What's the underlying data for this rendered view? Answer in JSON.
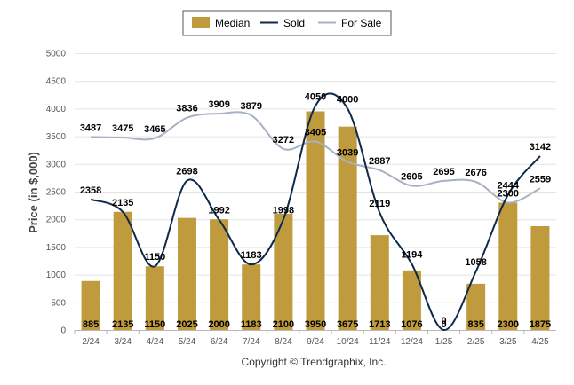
{
  "chart_data": {
    "type": "bar",
    "categories": [
      "2/24",
      "3/24",
      "4/24",
      "5/24",
      "6/24",
      "7/24",
      "8/24",
      "9/24",
      "10/24",
      "11/24",
      "12/24",
      "1/25",
      "2/25",
      "3/25",
      "4/25"
    ],
    "series": [
      {
        "name": "Median",
        "type": "bar",
        "color": "#bf9b3e",
        "values": [
          885,
          2135,
          1150,
          2025,
          2000,
          1183,
          2100,
          3950,
          3675,
          1713,
          1076,
          0,
          835,
          2300,
          1875
        ]
      },
      {
        "name": "Sold",
        "type": "line",
        "color": "#0d2a4a",
        "values": [
          2358,
          2135,
          1150,
          2698,
          1992,
          1183,
          1998,
          4050,
          4000,
          2119,
          1194,
          0,
          1058,
          2444,
          3142
        ]
      },
      {
        "name": "For Sale",
        "type": "line",
        "color": "#a7b1c4",
        "values": [
          3487,
          3475,
          3465,
          3836,
          3909,
          3879,
          3272,
          3405,
          3039,
          2887,
          2605,
          2695,
          2676,
          2300,
          2559
        ]
      }
    ],
    "ylabel": "Price (in $,000)",
    "ylim": [
      0,
      5000
    ],
    "yticks": [
      0,
      500,
      1000,
      1500,
      2000,
      2500,
      3000,
      3500,
      4000,
      4500,
      5000
    ],
    "grid": true,
    "legend_position": "top-center"
  },
  "copyright": "Copyright © Trendgraphix, Inc."
}
